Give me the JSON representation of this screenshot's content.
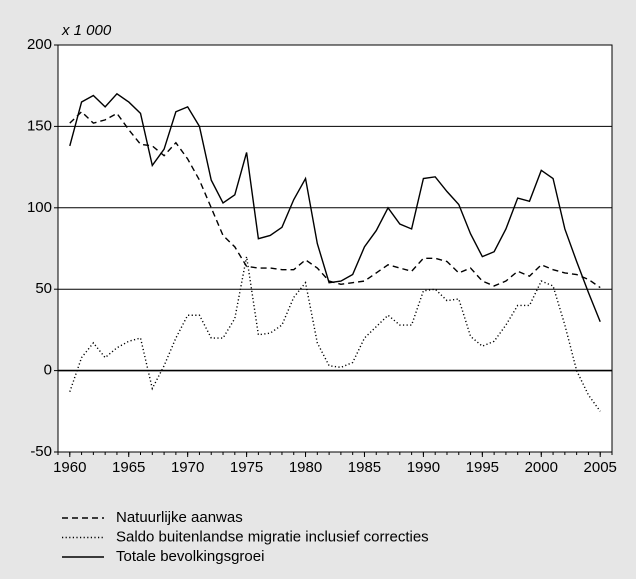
{
  "chart_data": {
    "type": "line",
    "unit_label": "x 1 000",
    "x": [
      1960,
      1961,
      1962,
      1963,
      1964,
      1965,
      1966,
      1967,
      1968,
      1969,
      1970,
      1971,
      1972,
      1973,
      1974,
      1975,
      1976,
      1977,
      1978,
      1979,
      1980,
      1981,
      1982,
      1983,
      1984,
      1985,
      1986,
      1987,
      1988,
      1989,
      1990,
      1991,
      1992,
      1993,
      1994,
      1995,
      1996,
      1997,
      1998,
      1999,
      2000,
      2001,
      2002,
      2003,
      2004,
      2005
    ],
    "series": [
      {
        "name": "Natuurlijke aanwas",
        "color": "#000000",
        "dash": "dashed",
        "values": [
          152,
          159,
          152,
          154,
          158,
          148,
          139,
          138,
          132,
          140,
          130,
          117,
          100,
          83,
          76,
          64,
          63,
          63,
          62,
          62,
          68,
          63,
          55,
          53,
          54,
          55,
          60,
          65,
          63,
          61,
          69,
          69,
          67,
          60,
          63,
          55,
          52,
          55,
          61,
          58,
          65,
          62,
          60,
          59,
          56,
          51
        ]
      },
      {
        "name": "Saldo buitenlandse migratie inclusief correcties",
        "color": "#000000",
        "dash": "dotted",
        "values": [
          -13,
          8,
          17,
          8,
          14,
          18,
          20,
          -11,
          3,
          20,
          34,
          34,
          20,
          20,
          32,
          70,
          22,
          23,
          28,
          45,
          54,
          17,
          3,
          2,
          5,
          20,
          27,
          34,
          28,
          28,
          49,
          50,
          43,
          44,
          21,
          15,
          18,
          28,
          40,
          40,
          55,
          52,
          28,
          0,
          -15,
          -25
        ]
      },
      {
        "name": "Totale bevolkingsgroei",
        "color": "#000000",
        "dash": "solid",
        "values": [
          138,
          165,
          169,
          162,
          170,
          165,
          158,
          126,
          136,
          159,
          162,
          150,
          117,
          103,
          108,
          134,
          81,
          83,
          88,
          105,
          118,
          78,
          54,
          55,
          59,
          76,
          86,
          100,
          90,
          87,
          118,
          119,
          110,
          102,
          84,
          70,
          73,
          87,
          106,
          104,
          123,
          118,
          87,
          67,
          48,
          30
        ]
      }
    ],
    "xlim": [
      1959,
      2006
    ],
    "xticks": [
      1960,
      1965,
      1970,
      1975,
      1980,
      1985,
      1990,
      1995,
      2000,
      2005
    ],
    "ylim": [
      -50,
      200
    ],
    "yticks": [
      -50,
      0,
      50,
      100,
      150,
      200
    ],
    "grid": true
  }
}
